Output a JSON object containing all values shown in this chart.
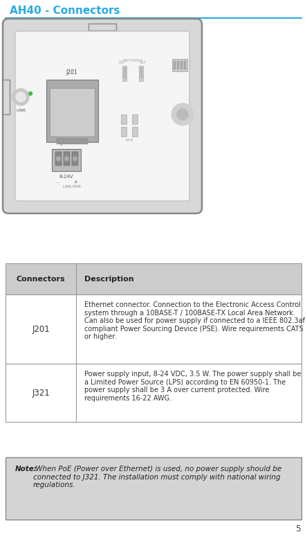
{
  "title": "AH40 - Connectors",
  "title_color": "#29ABE2",
  "title_fontsize": 11,
  "bg_color": "#ffffff",
  "page_number": "5",
  "table_header_col1": "Connectors",
  "table_header_col2": "Description",
  "table_header_bg": "#cccccc",
  "table_border_color": "#999999",
  "row1_col1": "J201",
  "row1_col2": "Ethernet connector. Connection to the Electronic Access Control system through a 10BASE-T / 100BASE-TX Local Area Network. Can also be used for power supply if connected to a IEEE 802.3af compliant Power Sourcing Device (PSE). Wire requirements CAT5 or higher.",
  "row2_col1": "J321",
  "row2_col2": "Power supply input, 8-24 VDC, 3.5 W. The power supply shall be a Limited Power Source (LPS) according to EN 60950-1. The power supply shall be 3 A over current protected. Wire requirements 16-22 AWG.",
  "note_bg": "#d4d4d4",
  "note_border": "#888888",
  "note_bold": "Note:",
  "note_text": " When PoE (Power over Ethernet) is used, no power supply should be connected to J321. The installation must comply with national wiring regulations.",
  "dev_outer_bg": "#d8d8d8",
  "dev_outer_border": "#888888",
  "dev_inner_bg": "#f5f5f5",
  "dev_inner_border": "#bbbbbb"
}
